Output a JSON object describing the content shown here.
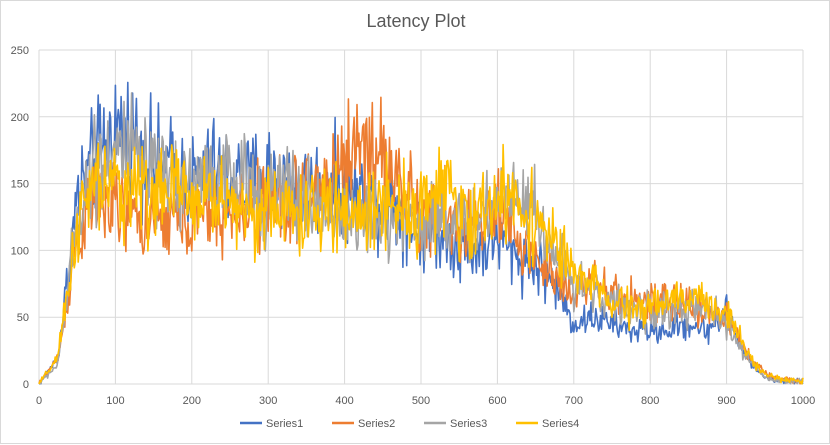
{
  "chart_data": {
    "type": "line",
    "title": "Latency Plot",
    "xlabel": "",
    "ylabel": "",
    "xlim": [
      0,
      1000
    ],
    "ylim": [
      0,
      250
    ],
    "x_ticks": [
      0,
      100,
      200,
      300,
      400,
      500,
      600,
      700,
      800,
      900,
      1000
    ],
    "y_ticks": [
      0,
      50,
      100,
      150,
      200,
      250
    ],
    "grid": true,
    "legend_position": "bottom",
    "x": [
      0,
      25,
      50,
      75,
      100,
      125,
      150,
      175,
      200,
      225,
      250,
      275,
      300,
      325,
      350,
      375,
      400,
      425,
      450,
      475,
      500,
      525,
      550,
      575,
      600,
      625,
      650,
      675,
      700,
      725,
      750,
      775,
      800,
      825,
      850,
      875,
      900,
      925,
      950,
      975,
      1000
    ],
    "series": [
      {
        "name": "Series1",
        "color": "#4472c4",
        "values": [
          0,
          20,
          140,
          170,
          190,
          185,
          165,
          160,
          150,
          160,
          155,
          150,
          160,
          150,
          145,
          150,
          145,
          140,
          140,
          130,
          110,
          115,
          105,
          100,
          110,
          95,
          90,
          75,
          45,
          50,
          45,
          40,
          40,
          40,
          45,
          40,
          55,
          20,
          5,
          2,
          2
        ]
      },
      {
        "name": "Series2",
        "color": "#ed7d31",
        "values": [
          0,
          20,
          110,
          140,
          130,
          125,
          120,
          125,
          120,
          130,
          125,
          130,
          135,
          140,
          145,
          150,
          170,
          180,
          170,
          150,
          120,
          130,
          115,
          120,
          125,
          110,
          95,
          80,
          70,
          75,
          65,
          65,
          60,
          60,
          60,
          55,
          50,
          25,
          8,
          3,
          2
        ]
      },
      {
        "name": "Series3",
        "color": "#a5a5a5",
        "values": [
          0,
          15,
          125,
          170,
          175,
          170,
          150,
          155,
          150,
          160,
          150,
          150,
          140,
          145,
          135,
          130,
          125,
          125,
          120,
          125,
          120,
          130,
          115,
          120,
          140,
          150,
          130,
          95,
          80,
          70,
          60,
          55,
          55,
          55,
          55,
          55,
          45,
          20,
          5,
          2,
          2
        ]
      },
      {
        "name": "Series4",
        "color": "#ffc000",
        "values": [
          0,
          20,
          120,
          150,
          145,
          150,
          140,
          145,
          140,
          140,
          135,
          130,
          130,
          130,
          125,
          130,
          130,
          125,
          140,
          135,
          130,
          150,
          125,
          125,
          140,
          135,
          125,
          105,
          80,
          75,
          60,
          55,
          60,
          60,
          65,
          60,
          55,
          25,
          8,
          3,
          2
        ]
      }
    ]
  }
}
